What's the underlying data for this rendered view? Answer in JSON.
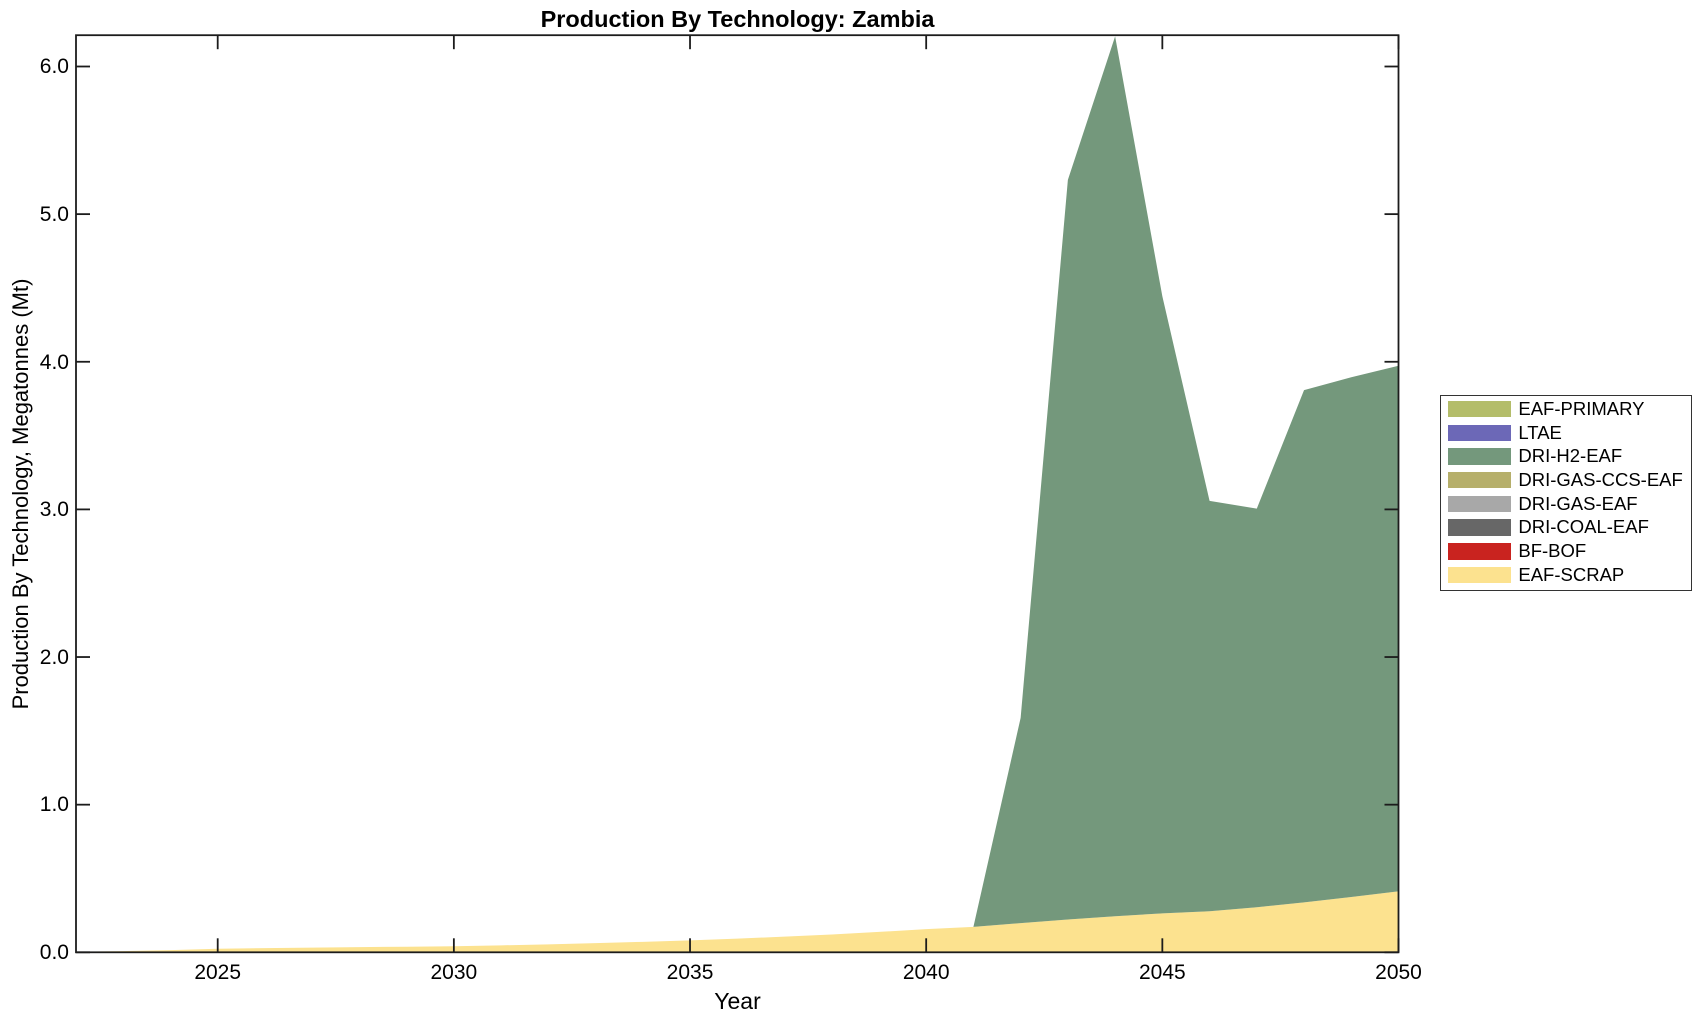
{
  "chart_data": {
    "type": "area",
    "stacked": true,
    "title": "Production By Technology: Zambia",
    "xlabel": "Year",
    "ylabel": "Production By Technology, Megatonnes (Mt)",
    "x": [
      2022,
      2023,
      2024,
      2025,
      2026,
      2027,
      2028,
      2029,
      2030,
      2031,
      2032,
      2033,
      2034,
      2035,
      2036,
      2037,
      2038,
      2039,
      2040,
      2041,
      2042,
      2043,
      2044,
      2045,
      2046,
      2047,
      2048,
      2049,
      2050
    ],
    "xlim": [
      2022,
      2050
    ],
    "ylim": [
      0,
      6.212
    ],
    "xticks": [
      2025,
      2030,
      2035,
      2040,
      2045,
      2050
    ],
    "yticks": [
      0.0,
      1.0,
      2.0,
      3.0,
      4.0,
      5.0,
      6.0
    ],
    "ytick_labels": [
      "0.0",
      "1.0",
      "2.0",
      "3.0",
      "4.0",
      "5.0",
      "6.0"
    ],
    "grid": false,
    "tick_direction": "in",
    "background": "#ffffff",
    "text_color": "#000000",
    "axis_color": "#1c1c1c",
    "series": [
      {
        "name": "EAF-SCRAP",
        "color": "#fce28f",
        "values": [
          0.004,
          0.008,
          0.015,
          0.024,
          0.028,
          0.032,
          0.035,
          0.038,
          0.041,
          0.047,
          0.054,
          0.062,
          0.071,
          0.081,
          0.093,
          0.106,
          0.121,
          0.138,
          0.157,
          0.172,
          0.198,
          0.222,
          0.244,
          0.264,
          0.278,
          0.305,
          0.338,
          0.375,
          0.413
        ]
      },
      {
        "name": "BF-BOF",
        "color": "#c9231f",
        "values": [
          0,
          0,
          0,
          0,
          0,
          0,
          0,
          0,
          0,
          0,
          0,
          0,
          0,
          0,
          0,
          0,
          0,
          0,
          0,
          0,
          0,
          0,
          0,
          0,
          0,
          0,
          0,
          0,
          0
        ]
      },
      {
        "name": "DRI-COAL-EAF",
        "color": "#676767",
        "values": [
          0,
          0,
          0,
          0,
          0,
          0,
          0,
          0,
          0,
          0,
          0,
          0,
          0,
          0,
          0,
          0,
          0,
          0,
          0,
          0,
          0,
          0,
          0,
          0,
          0,
          0,
          0,
          0,
          0
        ]
      },
      {
        "name": "DRI-GAS-EAF",
        "color": "#a8a8a8",
        "values": [
          0,
          0,
          0,
          0,
          0,
          0,
          0,
          0,
          0,
          0,
          0,
          0,
          0,
          0,
          0,
          0,
          0,
          0,
          0,
          0,
          0,
          0,
          0,
          0,
          0,
          0,
          0,
          0,
          0
        ]
      },
      {
        "name": "DRI-GAS-CCS-EAF",
        "color": "#b6af6b",
        "values": [
          0,
          0,
          0,
          0,
          0,
          0,
          0,
          0,
          0,
          0,
          0,
          0,
          0,
          0,
          0,
          0,
          0,
          0,
          0,
          0,
          0,
          0,
          0,
          0,
          0,
          0,
          0,
          0,
          0
        ]
      },
      {
        "name": "DRI-H2-EAF",
        "color": "#74987c",
        "values": [
          0,
          0,
          0,
          0,
          0,
          0,
          0,
          0,
          0,
          0,
          0,
          0,
          0,
          0,
          0,
          0,
          0,
          0,
          0,
          0,
          1.39,
          5.01,
          5.96,
          4.18,
          2.78,
          2.7,
          3.47,
          3.52,
          3.56
        ]
      },
      {
        "name": "LTAE",
        "color": "#6c68b7",
        "values": [
          0,
          0,
          0,
          0,
          0,
          0,
          0,
          0,
          0,
          0,
          0,
          0,
          0,
          0,
          0,
          0,
          0,
          0,
          0,
          0,
          0,
          0,
          0,
          0,
          0,
          0,
          0,
          0,
          0
        ]
      },
      {
        "name": "EAF-PRIMARY",
        "color": "#b4bd6a",
        "values": [
          0,
          0,
          0,
          0,
          0,
          0,
          0,
          0,
          0,
          0,
          0,
          0,
          0,
          0,
          0,
          0,
          0,
          0,
          0,
          0,
          0,
          0,
          0,
          0,
          0,
          0,
          0,
          0,
          0
        ]
      }
    ],
    "legend": {
      "position": "outside-center-right",
      "entries": [
        "EAF-PRIMARY",
        "LTAE",
        "DRI-H2-EAF",
        "DRI-GAS-CCS-EAF",
        "DRI-GAS-EAF",
        "DRI-COAL-EAF",
        "BF-BOF",
        "EAF-SCRAP"
      ]
    }
  }
}
